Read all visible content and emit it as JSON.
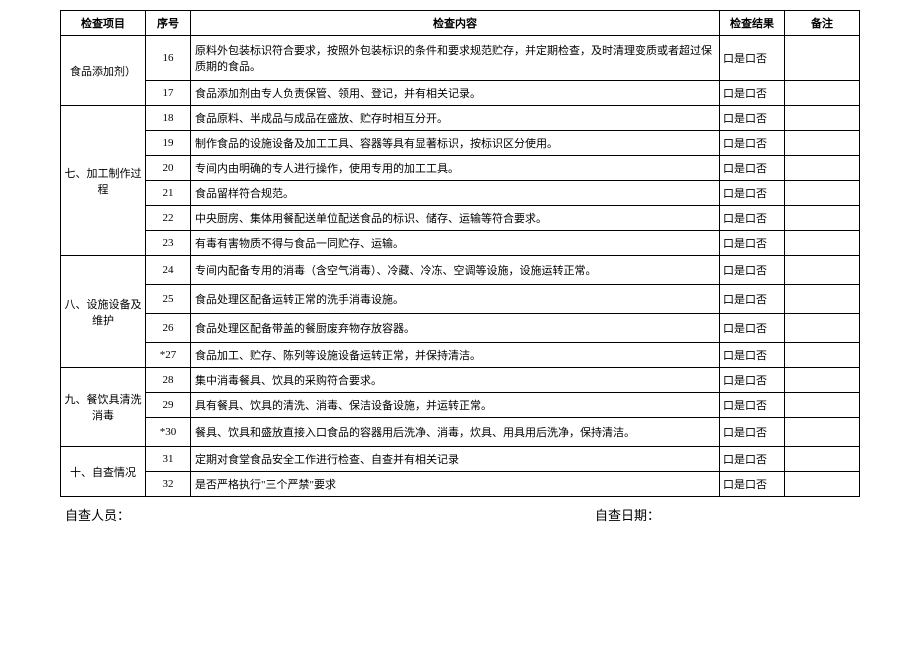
{
  "headers": {
    "category": "检查项目",
    "seq": "序号",
    "content": "检查内容",
    "result": "检查结果",
    "remark": "备注"
  },
  "result_text": "口是口否",
  "categories": {
    "c6": "食品添加剂）",
    "c7": "七、加工制作过程",
    "c8": "八、设施设备及维护",
    "c9": "九、餐饮具清洗消毒",
    "c10": "十、自查情况"
  },
  "rows": {
    "r16": {
      "seq": "16",
      "content": "原料外包装标识符合要求，按照外包装标识的条件和要求规范贮存，并定期检查，及时清理变质或者超过保质期的食品。"
    },
    "r17": {
      "seq": "17",
      "content": "食品添加剂由专人负责保管、领用、登记，并有相关记录。"
    },
    "r18": {
      "seq": "18",
      "content": "食品原料、半成品与成品在盛放、贮存时相互分开。"
    },
    "r19": {
      "seq": "19",
      "content": "制作食品的设施设备及加工工具、容器等具有显著标识，按标识区分使用。"
    },
    "r20": {
      "seq": "20",
      "content": "专间内由明确的专人进行操作，使用专用的加工工具。"
    },
    "r21": {
      "seq": "21",
      "content": "食品留样符合规范。"
    },
    "r22": {
      "seq": "22",
      "content": "中央厨房、集体用餐配送单位配送食品的标识、储存、运输等符合要求。"
    },
    "r23": {
      "seq": "23",
      "content": "有毒有害物质不得与食品一同贮存、运输。"
    },
    "r24": {
      "seq": "24",
      "content": "专间内配备专用的消毒（含空气消毒）、冷藏、冷冻、空调等设施，设施运转正常。"
    },
    "r25": {
      "seq": "25",
      "content": "食品处理区配备运转正常的洗手消毒设施。"
    },
    "r26": {
      "seq": "26",
      "content": "食品处理区配备带盖的餐厨废弃物存放容器。"
    },
    "r27": {
      "seq": "*27",
      "content": "食品加工、贮存、陈列等设施设备运转正常，并保持清洁。"
    },
    "r28": {
      "seq": "28",
      "content": "集中消毒餐具、饮具的采购符合要求。"
    },
    "r29": {
      "seq": "29",
      "content": "具有餐具、饮具的清洗、消毒、保洁设备设施，并运转正常。"
    },
    "r30": {
      "seq": "*30",
      "content": "餐具、饮具和盛放直接入口食品的容器用后洗净、消毒，炊具、用具用后洗净，保持清洁。"
    },
    "r31": {
      "seq": "31",
      "content": "定期对食堂食品安全工作进行检查、自查并有相关记录"
    },
    "r32": {
      "seq": "32",
      "content": "是否严格执行\"三个严禁\"要求"
    }
  },
  "footer": {
    "inspector": "自查人员：",
    "date": "自查日期："
  }
}
